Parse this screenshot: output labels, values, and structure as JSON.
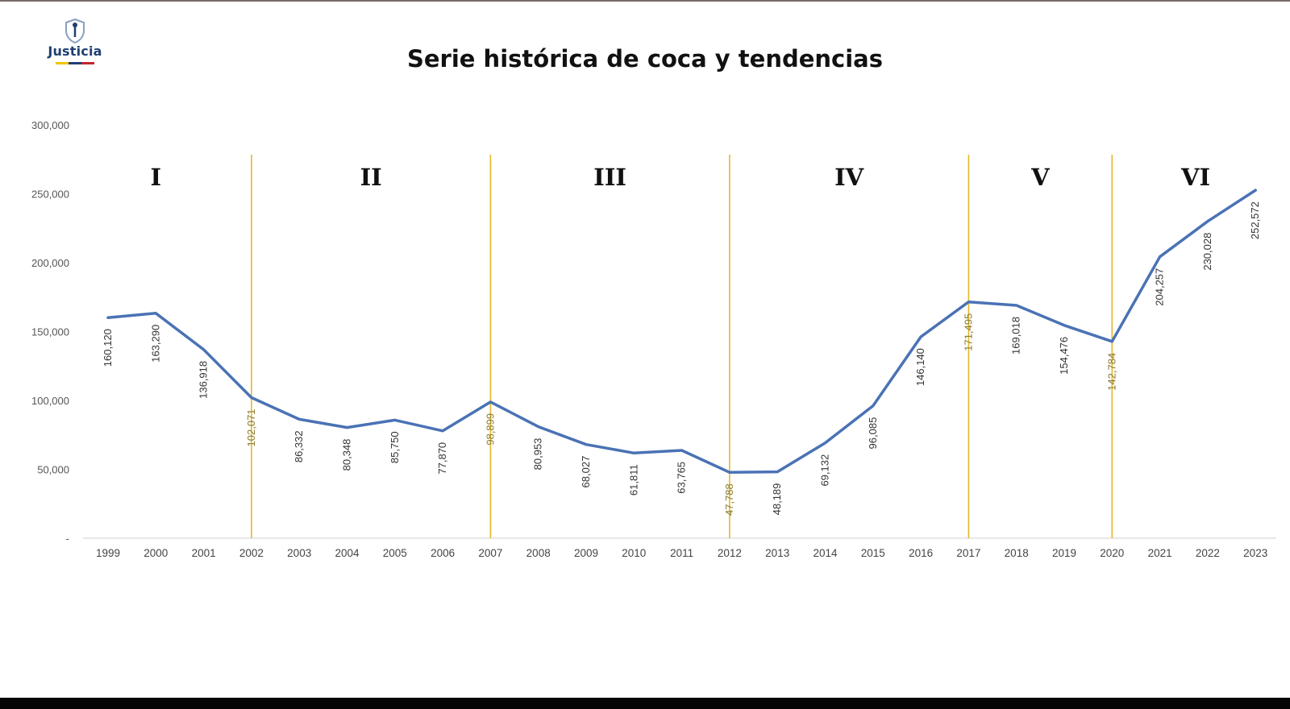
{
  "logo": {
    "text": "Justicia",
    "stripe_colors": [
      "#f2c400",
      "#1f3f73",
      "#c0272d"
    ]
  },
  "chart_data": {
    "type": "line",
    "title": "Serie histórica de coca y tendencias",
    "xlabel": "",
    "ylabel": "",
    "x": [
      "1999",
      "2000",
      "2001",
      "2002",
      "2003",
      "2004",
      "2005",
      "2006",
      "2007",
      "2008",
      "2009",
      "2010",
      "2011",
      "2012",
      "2013",
      "2014",
      "2015",
      "2016",
      "2017",
      "2018",
      "2019",
      "2020",
      "2021",
      "2022",
      "2023"
    ],
    "series": [
      {
        "color": "#4a72b5",
        "values": [
          160120,
          163290,
          136918,
          102071,
          86332,
          80348,
          85750,
          77870,
          98899,
          80953,
          68027,
          61811,
          63765,
          47788,
          48189,
          69132,
          96085,
          146140,
          171495,
          169018,
          154476,
          142784,
          204257,
          230028,
          252572
        ]
      }
    ],
    "data_labels": [
      "160,120",
      "163,290",
      "136,918",
      "102,071",
      "86,332",
      "80,348",
      "85,750",
      "77,870",
      "98,899",
      "80,953",
      "68,027",
      "61,811",
      "63,765",
      "47,788",
      "48,189",
      "69,132",
      "96,085",
      "146,140",
      "171,495",
      "169,018",
      "154,476",
      "142,784",
      "204,257",
      "230,028",
      "252,572"
    ],
    "ylim": [
      0,
      300000
    ],
    "yticks": [
      0,
      50000,
      100000,
      150000,
      200000,
      250000,
      300000
    ],
    "ytick_labels": [
      "-",
      "50,000",
      "100,000",
      "150,000",
      "200,000",
      "250,000",
      "300,000"
    ],
    "grid": false,
    "legend": "none",
    "period_dividers": [
      "2002",
      "2007",
      "2012",
      "2017",
      "2020"
    ],
    "divider_color": "#e3b82e",
    "periods": [
      {
        "label": "I",
        "center_year": "2000"
      },
      {
        "label": "II",
        "center_year": "2004.5"
      },
      {
        "label": "III",
        "center_year": "2009.5"
      },
      {
        "label": "IV",
        "center_year": "2014.5"
      },
      {
        "label": "V",
        "center_year": "2018.5"
      },
      {
        "label": "VI",
        "center_year": "2021.75"
      }
    ]
  }
}
